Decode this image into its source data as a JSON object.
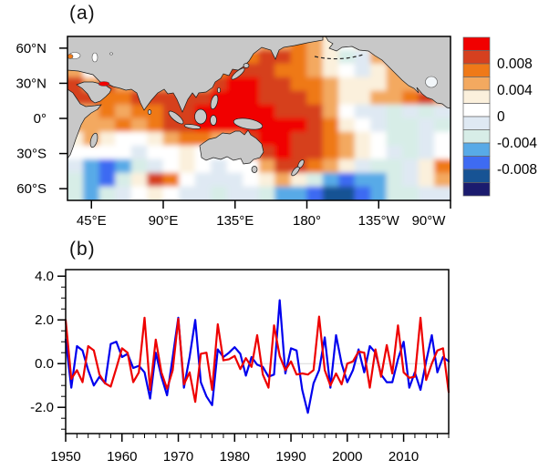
{
  "figure": {
    "background": "#ffffff",
    "panel_a": {
      "label": "(a)"
    },
    "panel_b": {
      "label": "(b)"
    }
  },
  "chart_data": [
    {
      "panel": "a",
      "type": "heatmap",
      "description": "Filled-contour map of trend pattern over Indo-Pacific ocean, land masked gray",
      "lon_range": [
        30,
        270
      ],
      "lat_range": [
        -70,
        70
      ],
      "x_ticks": [
        "45°E",
        "90°E",
        "135°E",
        "180°",
        "135°W",
        "90°W"
      ],
      "x_tick_lons": [
        45,
        90,
        135,
        180,
        225,
        270
      ],
      "y_ticks": [
        "60°N",
        "30°N",
        "0°",
        "30°S",
        "60°S"
      ],
      "y_tick_lats": [
        60,
        30,
        0,
        -30,
        -60
      ],
      "colorbar_labels": [
        "0.008",
        "0.004",
        "0",
        "-0.004",
        "-0.008"
      ],
      "colorbar_boundary_values": [
        0.01,
        0.008,
        0.006,
        0.004,
        0.002,
        0,
        -0.002,
        -0.004,
        -0.006,
        -0.008,
        -0.01
      ],
      "palette": [
        "#f10000",
        "#d6401f",
        "#ef7918",
        "#f3a960",
        "#fbf0dc",
        "#ffffff",
        "#dfe9f3",
        "#d7ede7",
        "#58aae7",
        "#3e6bf2",
        "#175394",
        "#1b1b6e"
      ],
      "land_color": "#c8c8c8",
      "coast_color": "#1a1a1a",
      "grid_note": "field values in units of 0.001, 12 lat rows (70N to 70S) x 24 lon cols (30E to 270E)",
      "grid_values": [
        [
          1,
          1,
          1,
          1,
          1,
          1,
          1,
          1,
          1,
          1,
          1,
          3,
          5,
          5,
          7,
          5,
          3,
          1,
          3,
          5,
          1,
          1,
          1,
          1
        ],
        [
          1,
          1,
          1,
          1,
          1,
          1,
          1,
          1,
          1,
          1,
          3,
          7,
          9,
          9,
          7,
          5,
          3,
          -3,
          -1,
          5,
          9,
          7,
          1,
          1
        ],
        [
          5,
          1,
          1,
          1,
          1,
          1,
          1,
          1,
          3,
          7,
          9,
          9,
          9,
          7,
          7,
          5,
          3,
          1,
          -1,
          3,
          5,
          5,
          1,
          1
        ],
        [
          9,
          5,
          9,
          5,
          5,
          5,
          5,
          5,
          5,
          9,
          11,
          11,
          9,
          9,
          7,
          7,
          5,
          3,
          3,
          3,
          5,
          5,
          3,
          1
        ],
        [
          9,
          9,
          7,
          7,
          9,
          9,
          9,
          9,
          9,
          11,
          11,
          11,
          9,
          9,
          9,
          7,
          5,
          3,
          3,
          5,
          5,
          7,
          9,
          5
        ],
        [
          5,
          5,
          7,
          5,
          7,
          7,
          9,
          9,
          11,
          11,
          11,
          11,
          11,
          9,
          9,
          9,
          5,
          1,
          -1,
          -1,
          -3,
          -1,
          -3,
          -1
        ],
        [
          5,
          5,
          5,
          7,
          5,
          7,
          9,
          9,
          11,
          11,
          11,
          11,
          11,
          11,
          11,
          9,
          7,
          3,
          1,
          -1,
          -3,
          -3,
          -1,
          -3
        ],
        [
          3,
          5,
          3,
          1,
          1,
          3,
          5,
          7,
          7,
          5,
          5,
          9,
          11,
          11,
          9,
          9,
          7,
          5,
          3,
          1,
          -3,
          -3,
          -1,
          1
        ],
        [
          1,
          1,
          1,
          1,
          -1,
          1,
          1,
          3,
          1,
          1,
          1,
          7,
          9,
          11,
          9,
          9,
          7,
          5,
          3,
          1,
          -1,
          -3,
          -1,
          1
        ],
        [
          -1,
          -5,
          -7,
          -5,
          -3,
          -1,
          1,
          3,
          1,
          -1,
          1,
          1,
          5,
          9,
          9,
          7,
          5,
          3,
          -1,
          -3,
          -3,
          -1,
          3,
          7
        ],
        [
          -3,
          -5,
          -7,
          -3,
          3,
          9,
          7,
          1,
          -1,
          -1,
          -1,
          1,
          3,
          5,
          3,
          -3,
          -5,
          -7,
          -5,
          -5,
          -3,
          -1,
          3,
          5
        ],
        [
          -3,
          -5,
          -3,
          -1,
          1,
          3,
          1,
          -1,
          -1,
          -3,
          -1,
          -1,
          -3,
          -5,
          -5,
          -7,
          -9,
          -9,
          -7,
          -5,
          -3,
          -3,
          -1,
          -1
        ]
      ]
    },
    {
      "panel": "b",
      "type": "line",
      "x_start": 1950,
      "x_end": 2018,
      "x_ticks": [
        "1950",
        "1960",
        "1970",
        "1980",
        "1990",
        "2000",
        "2010"
      ],
      "x_tick_years": [
        1950,
        1960,
        1970,
        1980,
        1990,
        2000,
        2010
      ],
      "y_ticks": [
        "4.0",
        "2.0",
        "0.0",
        "-2.0"
      ],
      "y_tick_vals": [
        4,
        2,
        0,
        -2
      ],
      "ylim": [
        -3.2,
        4.3
      ],
      "grid_zero_line": true,
      "series": [
        {
          "name": "series-blue",
          "color": "#0000ee",
          "values": [
            1.1,
            -1.1,
            0.8,
            0.6,
            -0.3,
            -1.0,
            -0.6,
            -0.9,
            0.9,
            1.0,
            0.3,
            0.45,
            -0.2,
            -0.1,
            -0.4,
            -1.6,
            0.5,
            -0.6,
            -1.45,
            0.3,
            2.1,
            -1.1,
            0.3,
            2.0,
            -0.85,
            -1.5,
            -1.9,
            0.65,
            0.3,
            0.5,
            0.75,
            0.45,
            -0.55,
            0.3,
            -0.05,
            -0.15,
            -0.6,
            -0.5,
            2.9,
            -0.45,
            0.7,
            0.6,
            -1.2,
            -2.25,
            -0.9,
            -0.3,
            1.2,
            -1.1,
            1.3,
            0.0,
            -0.85,
            -0.3,
            0.65,
            -0.4,
            0.8,
            0.5,
            -0.5,
            -0.85,
            -0.85,
            0.2,
            1.0,
            -1.1,
            -0.4,
            -1.2,
            0.1,
            1.3,
            -0.4,
            0.3,
            0.1
          ]
        },
        {
          "name": "series-red",
          "color": "#ee0000",
          "values": [
            2.0,
            -0.7,
            -0.3,
            -0.85,
            0.8,
            0.6,
            -0.5,
            -0.9,
            -1.05,
            -0.2,
            0.7,
            0.5,
            -0.85,
            -0.4,
            2.1,
            -1.2,
            1.1,
            -0.4,
            -1.15,
            -0.3,
            2.05,
            -0.95,
            -0.4,
            -1.75,
            0.45,
            0.5,
            -1.2,
            1.8,
            0.15,
            0.2,
            0.35,
            -0.25,
            0.25,
            -0.15,
            1.3,
            -0.5,
            -1.1,
            1.75,
            0.35,
            -0.3,
            0.1,
            -0.5,
            -0.45,
            -0.5,
            -0.3,
            2.15,
            -0.3,
            -1.0,
            -0.45,
            -0.95,
            0.0,
            0.1,
            0.55,
            0.5,
            -1.1,
            0.65,
            -0.6,
            0.85,
            -0.45,
            1.75,
            -0.4,
            -0.65,
            -0.6,
            2.1,
            -0.75,
            0.0,
            0.6,
            0.7,
            -1.3
          ]
        }
      ]
    }
  ]
}
